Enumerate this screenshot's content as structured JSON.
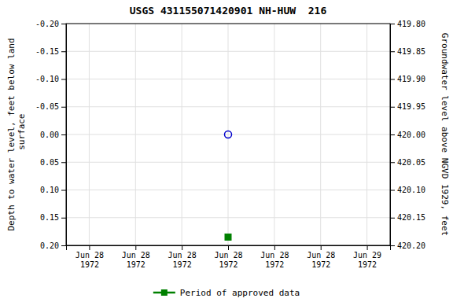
{
  "chart_data": {
    "type": "scatter",
    "title": "USGS 431155071420901 NH-HUW  216",
    "y_label": "Depth to water level, feet below land\n surface",
    "y2_label": "Groundwater level above NGVD 1929, feet",
    "categories": [
      "Jun 28\n1972",
      "Jun 28\n1972",
      "Jun 28\n1972",
      "Jun 28\n1972",
      "Jun 28\n1972",
      "Jun 28\n1972",
      "Jun 29\n1972"
    ],
    "series": [
      {
        "color": "#0000cc",
        "marker": "circle-open",
        "values": [
          null,
          null,
          null,
          0.0,
          null,
          null,
          null
        ]
      },
      {
        "name": "Period of approved data",
        "color": "#008000",
        "marker": "square",
        "values": [
          null,
          null,
          null,
          0.185,
          null,
          null,
          null
        ]
      }
    ],
    "ylim": [
      0.2,
      -0.2
    ],
    "yticks": [
      {
        "value": -0.2,
        "label": "-0.20"
      },
      -0.15,
      {
        "value": -0.1,
        "label": "-0.10"
      },
      -0.05,
      {
        "value": 0.0,
        "label": "0.00"
      },
      0.05,
      {
        "value": 0.1,
        "label": "0.10"
      },
      0.15,
      {
        "value": 0.2,
        "label": "0.20"
      }
    ],
    "y2lim": [
      420.2,
      419.8
    ],
    "y2ticks": [
      {
        "value": 420.2,
        "label": "420.20"
      },
      420.15,
      {
        "value": 420.1,
        "label": "420.10"
      },
      420.05,
      {
        "value": 420.0,
        "label": "420.00"
      },
      419.95,
      {
        "value": 419.9,
        "label": "419.90"
      },
      419.85,
      {
        "value": 419.8,
        "label": "419.80"
      }
    ],
    "grid": true,
    "legend": "bottom"
  }
}
